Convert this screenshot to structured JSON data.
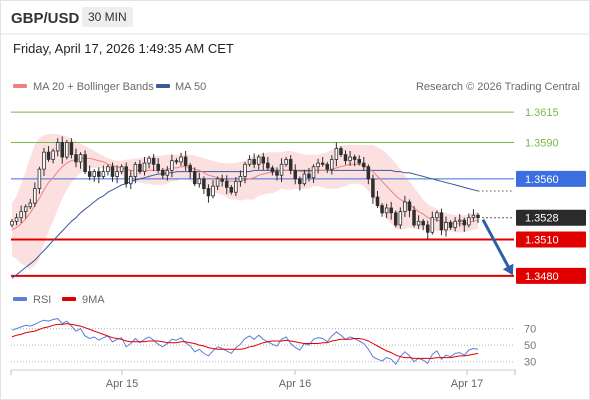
{
  "header": {
    "symbol": "GBP/USD",
    "timeframe": "30 MIN",
    "datetime": "Friday, April 17, 2026 1:49:35 AM CET"
  },
  "legend": {
    "ma20_label": "MA 20 + Bollinger Bands",
    "ma50_label": "MA 50",
    "ma20_color": "#f08080",
    "ma50_color": "#3a5a9c",
    "research": "Research © 2026 Trading Central",
    "rsi_label": "RSI",
    "rsi9_label": "9MA",
    "rsi_color": "#5b7fd6",
    "rsi9_color": "#e00000"
  },
  "chart_data": [
    {
      "type": "line",
      "name": "price",
      "candle_up_color": "#2e2e2e",
      "candle_down_color": "#2e2e2e",
      "band_color": "#fbdada",
      "x_ticks": [
        "Apr 15",
        "Apr 16",
        "Apr 17"
      ],
      "ylim": [
        1.3475,
        1.3625
      ],
      "levels": [
        {
          "value": "1.3615",
          "price": 1.3615,
          "kind": "target",
          "color": "#7ab648"
        },
        {
          "value": "1.3590",
          "price": 1.359,
          "kind": "target",
          "color": "#7ab648"
        },
        {
          "value": "1.3560",
          "price": 1.356,
          "kind": "pivot",
          "color": "#3b6fe0"
        },
        {
          "value": "1.3528",
          "price": 1.3528,
          "kind": "last",
          "color": "#2b2b2b"
        },
        {
          "value": "1.3510",
          "price": 1.351,
          "kind": "target",
          "color": "#e00000"
        },
        {
          "value": "1.3480",
          "price": 1.348,
          "kind": "target",
          "color": "#e00000"
        }
      ],
      "close": [
        1.3525,
        1.3528,
        1.3533,
        1.3537,
        1.354,
        1.3552,
        1.3568,
        1.3582,
        1.3576,
        1.3583,
        1.359,
        1.3578,
        1.359,
        1.358,
        1.3574,
        1.358,
        1.3566,
        1.3562,
        1.3566,
        1.3562,
        1.3566,
        1.357,
        1.3562,
        1.3566,
        1.357,
        1.3556,
        1.3562,
        1.3572,
        1.3566,
        1.3573,
        1.3577,
        1.3572,
        1.3567,
        1.3563,
        1.3567,
        1.3575,
        1.3574,
        1.3578,
        1.3571,
        1.3566,
        1.3556,
        1.356,
        1.3552,
        1.3546,
        1.3554,
        1.356,
        1.3558,
        1.3553,
        1.3549,
        1.3558,
        1.3562,
        1.3572,
        1.3576,
        1.3572,
        1.3578,
        1.3573,
        1.3569,
        1.3566,
        1.3563,
        1.3572,
        1.3576,
        1.3567,
        1.356,
        1.3556,
        1.3564,
        1.3561,
        1.357,
        1.3573,
        1.3572,
        1.3568,
        1.3576,
        1.3585,
        1.358,
        1.3575,
        1.3578,
        1.3576,
        1.3573,
        1.357,
        1.356,
        1.3545,
        1.3538,
        1.3532,
        1.3536,
        1.3532,
        1.3522,
        1.3533,
        1.3541,
        1.3534,
        1.3522,
        1.3525,
        1.3522,
        1.3516,
        1.3528,
        1.3532,
        1.3518,
        1.3524,
        1.352,
        1.3525,
        1.3526,
        1.3522,
        1.3528,
        1.353,
        1.3528
      ],
      "ma20": [
        1.3518,
        1.352,
        1.3523,
        1.3527,
        1.3532,
        1.3538,
        1.3544,
        1.3551,
        1.3557,
        1.3561,
        1.3566,
        1.357,
        1.3573,
        1.3575,
        1.3576,
        1.3577,
        1.3577,
        1.3577,
        1.3576,
        1.3575,
        1.3574,
        1.3572,
        1.3571,
        1.357,
        1.3569,
        1.3568,
        1.3567,
        1.3567,
        1.3567,
        1.3567,
        1.3567,
        1.3567,
        1.3567,
        1.3567,
        1.3568,
        1.3569,
        1.3569,
        1.357,
        1.357,
        1.3569,
        1.3568,
        1.3567,
        1.3565,
        1.3563,
        1.3562,
        1.3561,
        1.356,
        1.3559,
        1.3558,
        1.3558,
        1.3558,
        1.3559,
        1.356,
        1.3561,
        1.3563,
        1.3564,
        1.3565,
        1.3565,
        1.3566,
        1.3567,
        1.3567,
        1.3567,
        1.3567,
        1.3566,
        1.3566,
        1.3566,
        1.3567,
        1.3567,
        1.3567,
        1.3567,
        1.3568,
        1.3569,
        1.357,
        1.3571,
        1.3572,
        1.3572,
        1.3572,
        1.3571,
        1.3569,
        1.3566,
        1.3562,
        1.3558,
        1.3554,
        1.355,
        1.3546,
        1.3543,
        1.3541,
        1.3539,
        1.3536,
        1.3533,
        1.3531,
        1.3528,
        1.3527,
        1.3526,
        1.3525,
        1.3524,
        1.3524,
        1.3523,
        1.3523,
        1.3523,
        1.3524,
        1.3525,
        1.3526
      ],
      "bb_upper": [
        1.354,
        1.3546,
        1.3556,
        1.3566,
        1.3578,
        1.3588,
        1.3594,
        1.3596,
        1.3597,
        1.3597,
        1.3597,
        1.3596,
        1.3595,
        1.3593,
        1.3591,
        1.3589,
        1.3587,
        1.3585,
        1.3583,
        1.3581,
        1.3579,
        1.3577,
        1.3576,
        1.3575,
        1.3575,
        1.3576,
        1.3576,
        1.3577,
        1.3577,
        1.3578,
        1.3578,
        1.3579,
        1.3579,
        1.3579,
        1.358,
        1.358,
        1.358,
        1.358,
        1.358,
        1.358,
        1.3579,
        1.3578,
        1.3577,
        1.3576,
        1.3575,
        1.3574,
        1.3573,
        1.3573,
        1.3573,
        1.3573,
        1.3574,
        1.3575,
        1.3577,
        1.3579,
        1.358,
        1.3581,
        1.3582,
        1.3582,
        1.3582,
        1.3582,
        1.3583,
        1.3583,
        1.3582,
        1.3581,
        1.358,
        1.358,
        1.358,
        1.358,
        1.3581,
        1.3582,
        1.3584,
        1.3586,
        1.3587,
        1.3588,
        1.3588,
        1.3588,
        1.3588,
        1.3588,
        1.3588,
        1.3588,
        1.3586,
        1.3584,
        1.3581,
        1.3577,
        1.3573,
        1.3568,
        1.3563,
        1.3558,
        1.3553,
        1.3548,
        1.3543,
        1.3539,
        1.3537,
        1.3535,
        1.3533,
        1.3532,
        1.3531,
        1.353,
        1.353,
        1.353,
        1.3531,
        1.3532,
        1.3533
      ],
      "bb_lower": [
        1.3496,
        1.3494,
        1.349,
        1.3488,
        1.3486,
        1.3488,
        1.3494,
        1.3506,
        1.3517,
        1.3525,
        1.3535,
        1.3544,
        1.3551,
        1.3557,
        1.3561,
        1.3565,
        1.3567,
        1.3569,
        1.3569,
        1.3569,
        1.3569,
        1.3567,
        1.3566,
        1.3565,
        1.3563,
        1.356,
        1.3558,
        1.3557,
        1.3557,
        1.3556,
        1.3556,
        1.3555,
        1.3555,
        1.3555,
        1.3556,
        1.3558,
        1.3558,
        1.356,
        1.356,
        1.3558,
        1.3557,
        1.3556,
        1.3553,
        1.355,
        1.3549,
        1.3548,
        1.3547,
        1.3545,
        1.3543,
        1.3543,
        1.3542,
        1.3543,
        1.3543,
        1.3543,
        1.3546,
        1.3547,
        1.3548,
        1.3548,
        1.355,
        1.3552,
        1.3551,
        1.3551,
        1.3552,
        1.3551,
        1.3552,
        1.3552,
        1.3554,
        1.3554,
        1.3553,
        1.3552,
        1.3552,
        1.3552,
        1.3553,
        1.3554,
        1.3556,
        1.3556,
        1.3556,
        1.3554,
        1.355,
        1.3544,
        1.3538,
        1.3532,
        1.3527,
        1.3523,
        1.3519,
        1.3518,
        1.3519,
        1.352,
        1.3519,
        1.3518,
        1.3519,
        1.3517,
        1.3517,
        1.3517,
        1.3517,
        1.3516,
        1.3517,
        1.3516,
        1.3516,
        1.3516,
        1.3517,
        1.3518,
        1.3519
      ],
      "ma50": [
        1.3478,
        1.3481,
        1.3484,
        1.3487,
        1.349,
        1.3493,
        1.3497,
        1.3501,
        1.3505,
        1.3509,
        1.3513,
        1.3517,
        1.3521,
        1.3525,
        1.3528,
        1.3532,
        1.3535,
        1.3538,
        1.3541,
        1.3544,
        1.3546,
        1.3549,
        1.3551,
        1.3553,
        1.3555,
        1.3556,
        1.3558,
        1.3559,
        1.356,
        1.3561,
        1.3562,
        1.3563,
        1.3564,
        1.3564,
        1.3565,
        1.3565,
        1.3566,
        1.3566,
        1.3566,
        1.3566,
        1.3566,
        1.3566,
        1.3566,
        1.3566,
        1.3566,
        1.3566,
        1.3566,
        1.3566,
        1.3566,
        1.3566,
        1.3566,
        1.3566,
        1.3566,
        1.3567,
        1.3567,
        1.3567,
        1.3567,
        1.3567,
        1.3567,
        1.3567,
        1.3567,
        1.3567,
        1.3567,
        1.3567,
        1.3567,
        1.3567,
        1.3567,
        1.3567,
        1.3567,
        1.3567,
        1.3567,
        1.3567,
        1.3567,
        1.3567,
        1.3567,
        1.3567,
        1.3567,
        1.3567,
        1.3567,
        1.3567,
        1.3567,
        1.3567,
        1.3567,
        1.3567,
        1.3566,
        1.3566,
        1.3565,
        1.3565,
        1.3564,
        1.3563,
        1.3562,
        1.3561,
        1.356,
        1.3559,
        1.3558,
        1.3557,
        1.3556,
        1.3555,
        1.3554,
        1.3553,
        1.3552,
        1.3551,
        1.355
      ],
      "forecast": {
        "from": 1.3528,
        "to": 1.348
      }
    },
    {
      "type": "line",
      "name": "RSI",
      "ylim": [
        20,
        90
      ],
      "y_ticks": [
        "70",
        "50",
        "30"
      ],
      "rsi": [
        68,
        70,
        72,
        74,
        73,
        75,
        78,
        80,
        79,
        81,
        82,
        76,
        79,
        73,
        67,
        70,
        61,
        58,
        60,
        56,
        59,
        61,
        54,
        57,
        59,
        48,
        52,
        58,
        53,
        57,
        60,
        56,
        51,
        48,
        52,
        57,
        56,
        59,
        53,
        49,
        42,
        45,
        40,
        37,
        43,
        48,
        46,
        43,
        40,
        47,
        51,
        58,
        61,
        57,
        62,
        57,
        54,
        51,
        49,
        57,
        60,
        52,
        47,
        44,
        52,
        50,
        57,
        59,
        58,
        54,
        61,
        66,
        62,
        57,
        60,
        58,
        55,
        52,
        45,
        36,
        33,
        31,
        35,
        33,
        27,
        36,
        42,
        37,
        30,
        34,
        32,
        28,
        39,
        43,
        33,
        38,
        36,
        40,
        41,
        38,
        44,
        46,
        45
      ],
      "rsi9": [
        60,
        62,
        63,
        65,
        66,
        67,
        69,
        71,
        72,
        74,
        75,
        75,
        76,
        75,
        74,
        73,
        71,
        69,
        67,
        65,
        63,
        61,
        59,
        58,
        57,
        55,
        54,
        54,
        54,
        54,
        55,
        55,
        55,
        54,
        53,
        53,
        53,
        54,
        54,
        53,
        52,
        50,
        49,
        47,
        46,
        45,
        45,
        45,
        45,
        45,
        45,
        46,
        48,
        49,
        51,
        53,
        54,
        55,
        55,
        55,
        56,
        55,
        54,
        53,
        52,
        52,
        52,
        52,
        53,
        53,
        55,
        56,
        57,
        57,
        57,
        58,
        58,
        57,
        55,
        52,
        49,
        46,
        43,
        41,
        38,
        36,
        35,
        35,
        34,
        34,
        34,
        34,
        34,
        35,
        35,
        35,
        35,
        36,
        37,
        37,
        38,
        39,
        40
      ]
    }
  ]
}
